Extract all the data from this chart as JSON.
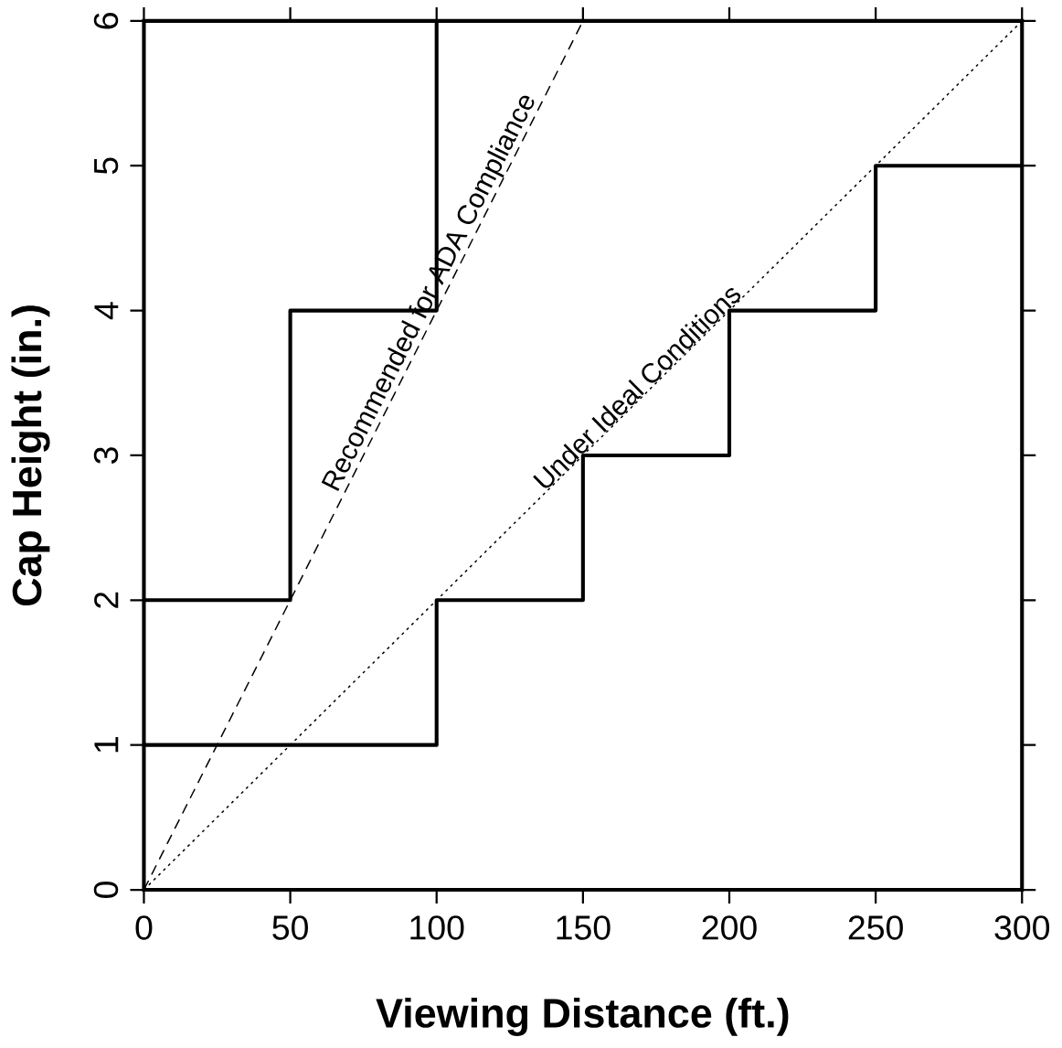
{
  "chart_data": {
    "type": "line",
    "xlabel": "Viewing Distance (ft.)",
    "ylabel": "Cap Height (in.)",
    "xlim": [
      0,
      300
    ],
    "ylim": [
      0,
      6
    ],
    "xticks": [
      0,
      50,
      100,
      150,
      200,
      250,
      300
    ],
    "yticks": [
      0,
      1,
      2,
      3,
      4,
      5,
      6
    ],
    "grid": false,
    "series": [
      {
        "name": "Recommended for ADA Compliance",
        "line_style": "dashed",
        "color": "#000000",
        "x": [
          0,
          150
        ],
        "values": [
          0,
          6
        ]
      },
      {
        "name": "Under Ideal Conditions",
        "line_style": "dotted",
        "color": "#000000",
        "x": [
          0,
          300
        ],
        "values": [
          0,
          6
        ]
      },
      {
        "type": "step",
        "line_style": "solid",
        "color": "#000000",
        "x": [
          0,
          50,
          100,
          150,
          200,
          250,
          300
        ],
        "values": [
          1,
          1,
          2,
          3,
          4,
          5,
          5
        ]
      },
      {
        "type": "step",
        "line_style": "solid",
        "color": "#000000",
        "x": [
          0,
          50,
          100
        ],
        "values": [
          2,
          4,
          6
        ]
      }
    ]
  }
}
